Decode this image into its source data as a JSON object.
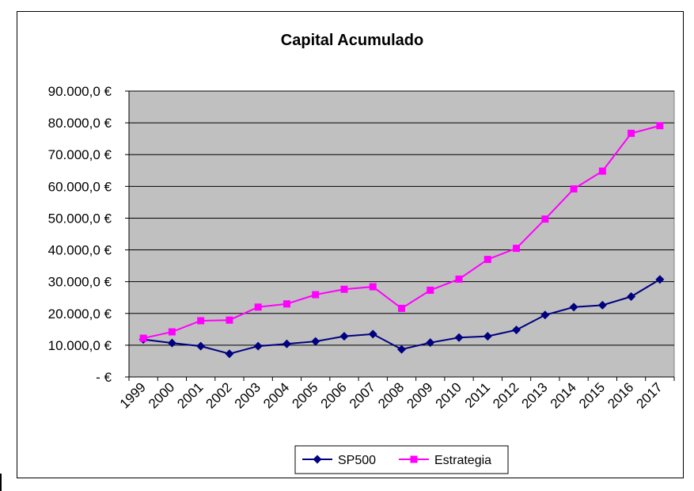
{
  "chart_data": {
    "type": "line",
    "title": "Capital Acumulado",
    "xlabel": "",
    "ylabel": "",
    "categories": [
      "1999",
      "2000",
      "2001",
      "2002",
      "2003",
      "2004",
      "2005",
      "2006",
      "2007",
      "2008",
      "2009",
      "2010",
      "2011",
      "2012",
      "2013",
      "2014",
      "2015",
      "2016",
      "2017"
    ],
    "ylim": [
      0,
      90000
    ],
    "yticks": [
      {
        "value": 0,
        "label": "-     €"
      },
      {
        "value": 10000,
        "label": "10.000,0 €"
      },
      {
        "value": 20000,
        "label": "20.000,0 €"
      },
      {
        "value": 30000,
        "label": "30.000,0 €"
      },
      {
        "value": 40000,
        "label": "40.000,0 €"
      },
      {
        "value": 50000,
        "label": "50.000,0 €"
      },
      {
        "value": 60000,
        "label": "60.000,0 €"
      },
      {
        "value": 70000,
        "label": "70.000,0 €"
      },
      {
        "value": 80000,
        "label": "80.000,0 €"
      },
      {
        "value": 90000,
        "label": "90.000,0 €"
      }
    ],
    "grid": true,
    "legend_position": "bottom",
    "plot_background": "#C0C0C0",
    "series": [
      {
        "name": "SP500",
        "color": "#000080",
        "marker": "diamond",
        "values": [
          11800,
          10700,
          9700,
          7300,
          9700,
          10400,
          11200,
          12800,
          13500,
          8700,
          10800,
          12400,
          12800,
          14800,
          19500,
          22000,
          22600,
          25300,
          30700
        ]
      },
      {
        "name": "Estrategia",
        "color": "#FF00FF",
        "marker": "square",
        "values": [
          12200,
          14200,
          17700,
          17900,
          22000,
          23000,
          25900,
          27600,
          28400,
          21600,
          27300,
          30800,
          37000,
          40500,
          49700,
          59200,
          64800,
          76700,
          79100
        ]
      }
    ]
  }
}
